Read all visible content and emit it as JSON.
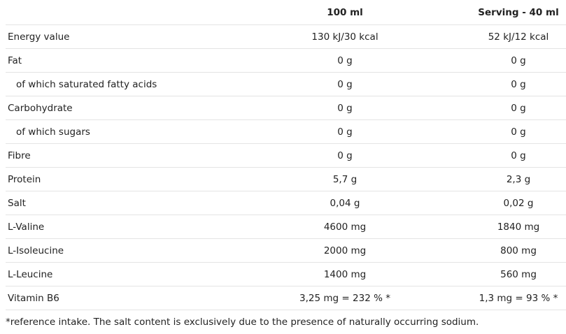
{
  "header": {
    "col1": "100 ml",
    "col2": "Serving - 40 ml"
  },
  "rows": [
    {
      "label": "Energy value",
      "per100": "130 kJ/30 kcal",
      "serving": "52 kJ/12 kcal",
      "indent": false
    },
    {
      "label": "Fat",
      "per100": "0 g",
      "serving": "0 g",
      "indent": false
    },
    {
      "label": "of which saturated fatty acids",
      "per100": "0 g",
      "serving": "0 g",
      "indent": true
    },
    {
      "label": "Carbohydrate",
      "per100": "0 g",
      "serving": "0 g",
      "indent": false
    },
    {
      "label": "of which sugars",
      "per100": "0 g",
      "serving": "0 g",
      "indent": true
    },
    {
      "label": "Fibre",
      "per100": "0 g",
      "serving": "0 g",
      "indent": false
    },
    {
      "label": "Protein",
      "per100": "5,7 g",
      "serving": "2,3 g",
      "indent": false
    },
    {
      "label": "Salt",
      "per100": "0,04 g",
      "serving": "0,02 g",
      "indent": false
    },
    {
      "label": "L-Valine",
      "per100": "4600 mg",
      "serving": "1840 mg",
      "indent": false
    },
    {
      "label": "L-Isoleucine",
      "per100": "2000 mg",
      "serving": "800 mg",
      "indent": false
    },
    {
      "label": "L-Leucine",
      "per100": "1400 mg",
      "serving": "560 mg",
      "indent": false
    },
    {
      "label": "Vitamin B6",
      "per100": "3,25 mg = 232 % *",
      "serving": "1,3 mg = 93 % *",
      "indent": false
    }
  ],
  "footnote": "*reference intake. The salt content is exclusively due to the presence of naturally occurring sodium."
}
